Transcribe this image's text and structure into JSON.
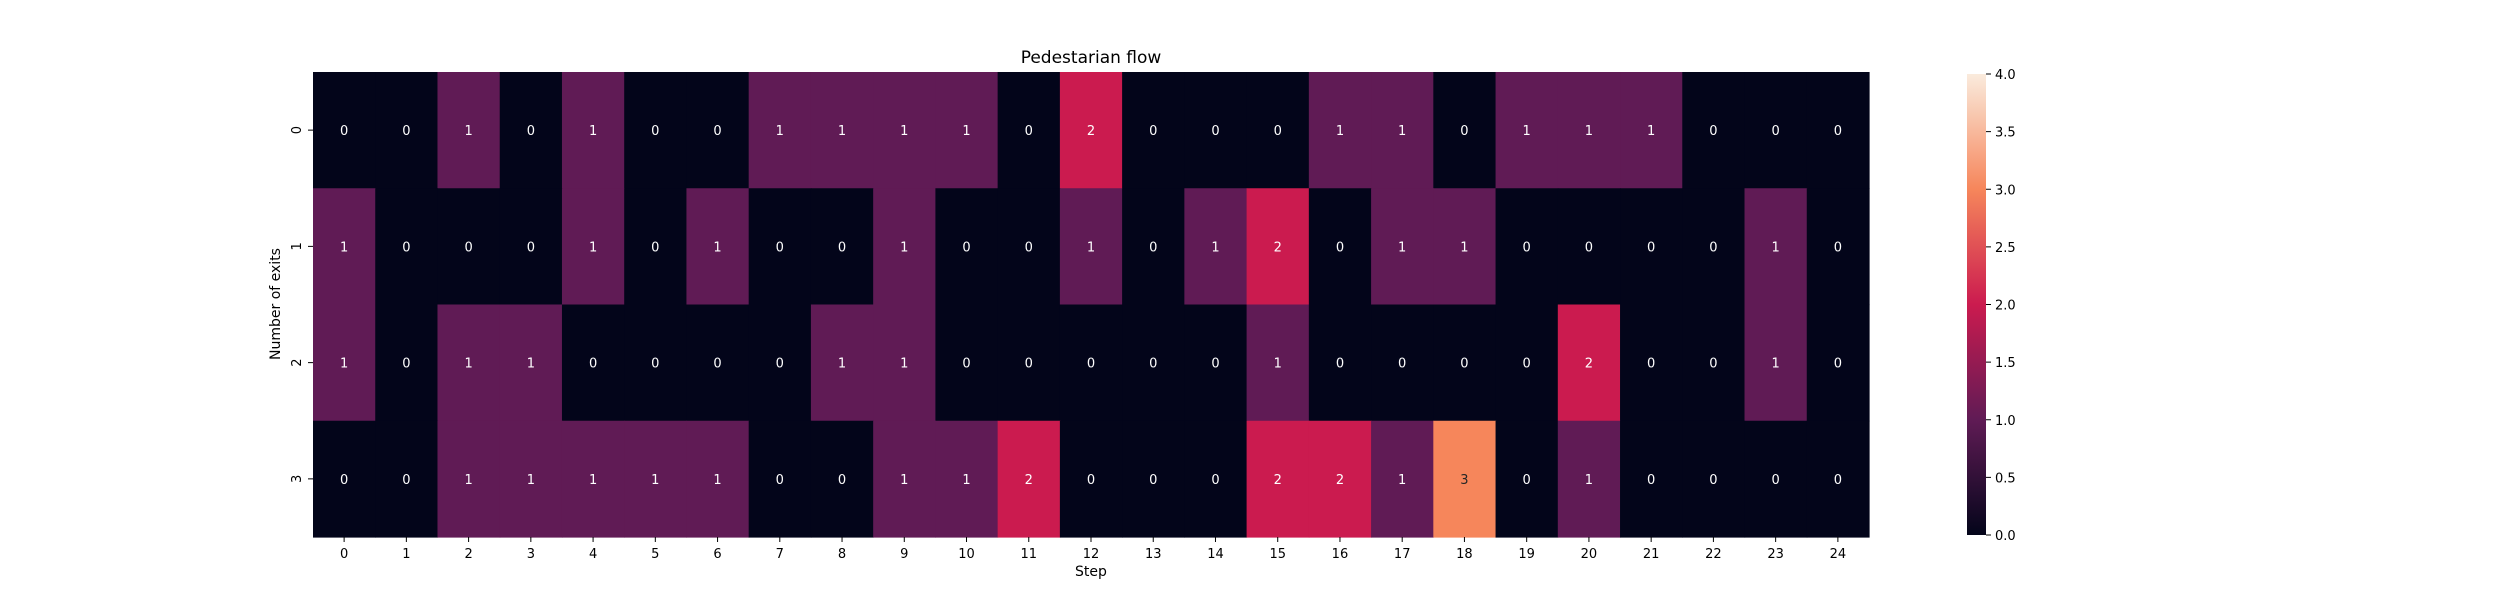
{
  "chart_data": {
    "type": "heatmap",
    "title": "Pedestarian flow",
    "xlabel": "Step",
    "ylabel": "Number of exits",
    "x_categories": [
      "0",
      "1",
      "2",
      "3",
      "4",
      "5",
      "6",
      "7",
      "8",
      "9",
      "10",
      "11",
      "12",
      "13",
      "14",
      "15",
      "16",
      "17",
      "18",
      "19",
      "20",
      "21",
      "22",
      "23",
      "24"
    ],
    "y_categories": [
      "0",
      "1",
      "2",
      "3"
    ],
    "values": [
      [
        0,
        0,
        1,
        0,
        1,
        0,
        0,
        1,
        1,
        1,
        1,
        0,
        2,
        0,
        0,
        0,
        1,
        1,
        0,
        1,
        1,
        1,
        0,
        0,
        0
      ],
      [
        1,
        0,
        0,
        0,
        1,
        0,
        1,
        0,
        0,
        1,
        0,
        0,
        1,
        0,
        1,
        2,
        0,
        1,
        1,
        0,
        0,
        0,
        0,
        1,
        0
      ],
      [
        1,
        0,
        1,
        1,
        0,
        0,
        0,
        0,
        1,
        1,
        0,
        0,
        0,
        0,
        0,
        1,
        0,
        0,
        0,
        0,
        2,
        0,
        0,
        1,
        0
      ],
      [
        0,
        0,
        1,
        1,
        1,
        1,
        1,
        0,
        0,
        1,
        1,
        2,
        0,
        0,
        0,
        2,
        2,
        1,
        3,
        0,
        1,
        0,
        0,
        0,
        0
      ]
    ],
    "colorbar": {
      "vmin": 0,
      "vmax": 4,
      "ticks": [
        "0.0",
        "0.5",
        "1.0",
        "1.5",
        "2.0",
        "2.5",
        "3.0",
        "3.5",
        "4.0"
      ]
    },
    "colormap": "rocket"
  }
}
